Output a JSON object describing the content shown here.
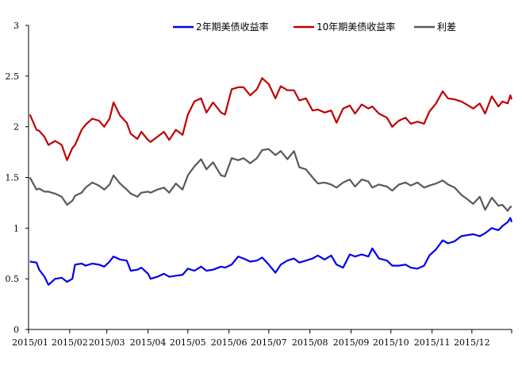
{
  "chart_data": {
    "type": "line",
    "title": "",
    "xlabel": "",
    "ylabel": "",
    "ylim": [
      0,
      3
    ],
    "yticks": [
      "0",
      "0.5",
      "1",
      "1.5",
      "2",
      "2.5",
      "3"
    ],
    "xticks": [
      "2015/01",
      "2015/02",
      "2015/03",
      "2015/04",
      "2015/05",
      "2015/06",
      "2015/07",
      "2015/08",
      "2015/09",
      "2015/10",
      "2015/11",
      "2015/12"
    ],
    "grid": false,
    "legend_position": "top",
    "series": [
      {
        "name": "2年期美债收益率",
        "color": "#0000ee",
        "points": [
          [
            "2015-01-02",
            0.67
          ],
          [
            "2015-01-07",
            0.66
          ],
          [
            "2015-01-09",
            0.59
          ],
          [
            "2015-01-13",
            0.52
          ],
          [
            "2015-01-16",
            0.44
          ],
          [
            "2015-01-21",
            0.5
          ],
          [
            "2015-01-26",
            0.51
          ],
          [
            "2015-01-30",
            0.47
          ],
          [
            "2015-02-03",
            0.5
          ],
          [
            "2015-02-05",
            0.64
          ],
          [
            "2015-02-10",
            0.65
          ],
          [
            "2015-02-13",
            0.63
          ],
          [
            "2015-02-18",
            0.65
          ],
          [
            "2015-02-23",
            0.64
          ],
          [
            "2015-02-27",
            0.62
          ],
          [
            "2015-03-03",
            0.67
          ],
          [
            "2015-03-06",
            0.72
          ],
          [
            "2015-03-11",
            0.69
          ],
          [
            "2015-03-16",
            0.68
          ],
          [
            "2015-03-19",
            0.58
          ],
          [
            "2015-03-24",
            0.59
          ],
          [
            "2015-03-27",
            0.61
          ],
          [
            "2015-04-01",
            0.55
          ],
          [
            "2015-04-03",
            0.5
          ],
          [
            "2015-04-08",
            0.52
          ],
          [
            "2015-04-13",
            0.55
          ],
          [
            "2015-04-17",
            0.52
          ],
          [
            "2015-04-22",
            0.53
          ],
          [
            "2015-04-27",
            0.54
          ],
          [
            "2015-05-01",
            0.6
          ],
          [
            "2015-05-06",
            0.58
          ],
          [
            "2015-05-11",
            0.62
          ],
          [
            "2015-05-15",
            0.58
          ],
          [
            "2015-05-20",
            0.59
          ],
          [
            "2015-05-26",
            0.62
          ],
          [
            "2015-05-29",
            0.61
          ],
          [
            "2015-06-03",
            0.64
          ],
          [
            "2015-06-08",
            0.72
          ],
          [
            "2015-06-12",
            0.7
          ],
          [
            "2015-06-17",
            0.67
          ],
          [
            "2015-06-22",
            0.68
          ],
          [
            "2015-06-26",
            0.71
          ],
          [
            "2015-07-01",
            0.64
          ],
          [
            "2015-07-06",
            0.56
          ],
          [
            "2015-07-10",
            0.64
          ],
          [
            "2015-07-15",
            0.68
          ],
          [
            "2015-07-20",
            0.7
          ],
          [
            "2015-07-24",
            0.66
          ],
          [
            "2015-07-29",
            0.68
          ],
          [
            "2015-08-03",
            0.7
          ],
          [
            "2015-08-07",
            0.73
          ],
          [
            "2015-08-12",
            0.69
          ],
          [
            "2015-08-17",
            0.73
          ],
          [
            "2015-08-21",
            0.64
          ],
          [
            "2015-08-26",
            0.61
          ],
          [
            "2015-08-31",
            0.74
          ],
          [
            "2015-09-04",
            0.72
          ],
          [
            "2015-09-09",
            0.74
          ],
          [
            "2015-09-14",
            0.72
          ],
          [
            "2015-09-17",
            0.8
          ],
          [
            "2015-09-22",
            0.7
          ],
          [
            "2015-09-28",
            0.68
          ],
          [
            "2015-10-02",
            0.63
          ],
          [
            "2015-10-07",
            0.63
          ],
          [
            "2015-10-12",
            0.64
          ],
          [
            "2015-10-16",
            0.61
          ],
          [
            "2015-10-21",
            0.6
          ],
          [
            "2015-10-26",
            0.63
          ],
          [
            "2015-10-30",
            0.73
          ],
          [
            "2015-11-04",
            0.79
          ],
          [
            "2015-11-09",
            0.88
          ],
          [
            "2015-11-13",
            0.85
          ],
          [
            "2015-11-18",
            0.87
          ],
          [
            "2015-11-23",
            0.92
          ],
          [
            "2015-11-27",
            0.93
          ],
          [
            "2015-12-02",
            0.94
          ],
          [
            "2015-12-07",
            0.92
          ],
          [
            "2015-12-11",
            0.95
          ],
          [
            "2015-12-16",
            1.0
          ],
          [
            "2015-12-21",
            0.98
          ],
          [
            "2015-12-24",
            1.02
          ],
          [
            "2015-12-28",
            1.06
          ],
          [
            "2015-12-30",
            1.1
          ],
          [
            "2015-12-31",
            1.06
          ]
        ]
      },
      {
        "name": "10年期美债收益率",
        "color": "#c00000",
        "points": [
          [
            "2015-01-02",
            2.12
          ],
          [
            "2015-01-07",
            1.97
          ],
          [
            "2015-01-09",
            1.96
          ],
          [
            "2015-01-13",
            1.9
          ],
          [
            "2015-01-16",
            1.82
          ],
          [
            "2015-01-21",
            1.86
          ],
          [
            "2015-01-26",
            1.82
          ],
          [
            "2015-01-30",
            1.67
          ],
          [
            "2015-02-03",
            1.79
          ],
          [
            "2015-02-05",
            1.82
          ],
          [
            "2015-02-10",
            1.97
          ],
          [
            "2015-02-13",
            2.02
          ],
          [
            "2015-02-18",
            2.08
          ],
          [
            "2015-02-23",
            2.06
          ],
          [
            "2015-02-27",
            2.0
          ],
          [
            "2015-03-03",
            2.08
          ],
          [
            "2015-03-06",
            2.24
          ],
          [
            "2015-03-11",
            2.11
          ],
          [
            "2015-03-16",
            2.04
          ],
          [
            "2015-03-19",
            1.93
          ],
          [
            "2015-03-24",
            1.88
          ],
          [
            "2015-03-27",
            1.95
          ],
          [
            "2015-04-01",
            1.87
          ],
          [
            "2015-04-03",
            1.85
          ],
          [
            "2015-04-08",
            1.9
          ],
          [
            "2015-04-13",
            1.95
          ],
          [
            "2015-04-17",
            1.87
          ],
          [
            "2015-04-22",
            1.97
          ],
          [
            "2015-04-27",
            1.92
          ],
          [
            "2015-05-01",
            2.12
          ],
          [
            "2015-05-06",
            2.25
          ],
          [
            "2015-05-11",
            2.28
          ],
          [
            "2015-05-15",
            2.14
          ],
          [
            "2015-05-20",
            2.24
          ],
          [
            "2015-05-26",
            2.14
          ],
          [
            "2015-05-29",
            2.12
          ],
          [
            "2015-06-03",
            2.37
          ],
          [
            "2015-06-08",
            2.39
          ],
          [
            "2015-06-12",
            2.39
          ],
          [
            "2015-06-17",
            2.31
          ],
          [
            "2015-06-22",
            2.37
          ],
          [
            "2015-06-26",
            2.48
          ],
          [
            "2015-07-01",
            2.42
          ],
          [
            "2015-07-06",
            2.28
          ],
          [
            "2015-07-10",
            2.4
          ],
          [
            "2015-07-15",
            2.36
          ],
          [
            "2015-07-20",
            2.36
          ],
          [
            "2015-07-24",
            2.26
          ],
          [
            "2015-07-29",
            2.28
          ],
          [
            "2015-08-03",
            2.16
          ],
          [
            "2015-08-07",
            2.17
          ],
          [
            "2015-08-12",
            2.14
          ],
          [
            "2015-08-17",
            2.16
          ],
          [
            "2015-08-21",
            2.04
          ],
          [
            "2015-08-26",
            2.18
          ],
          [
            "2015-08-31",
            2.21
          ],
          [
            "2015-09-04",
            2.13
          ],
          [
            "2015-09-09",
            2.22
          ],
          [
            "2015-09-14",
            2.18
          ],
          [
            "2015-09-17",
            2.2
          ],
          [
            "2015-09-22",
            2.13
          ],
          [
            "2015-09-28",
            2.09
          ],
          [
            "2015-10-02",
            2.0
          ],
          [
            "2015-10-07",
            2.06
          ],
          [
            "2015-10-12",
            2.09
          ],
          [
            "2015-10-16",
            2.03
          ],
          [
            "2015-10-21",
            2.05
          ],
          [
            "2015-10-26",
            2.03
          ],
          [
            "2015-10-30",
            2.15
          ],
          [
            "2015-11-04",
            2.23
          ],
          [
            "2015-11-09",
            2.35
          ],
          [
            "2015-11-13",
            2.28
          ],
          [
            "2015-11-18",
            2.27
          ],
          [
            "2015-11-23",
            2.25
          ],
          [
            "2015-11-27",
            2.22
          ],
          [
            "2015-12-02",
            2.18
          ],
          [
            "2015-12-07",
            2.23
          ],
          [
            "2015-12-11",
            2.13
          ],
          [
            "2015-12-16",
            2.3
          ],
          [
            "2015-12-21",
            2.2
          ],
          [
            "2015-12-24",
            2.25
          ],
          [
            "2015-12-28",
            2.23
          ],
          [
            "2015-12-30",
            2.31
          ],
          [
            "2015-12-31",
            2.27
          ]
        ]
      },
      {
        "name": "利差",
        "color": "#595959",
        "points": [
          [
            "2015-01-02",
            1.5
          ],
          [
            "2015-01-07",
            1.38
          ],
          [
            "2015-01-09",
            1.39
          ],
          [
            "2015-01-13",
            1.36
          ],
          [
            "2015-01-16",
            1.36
          ],
          [
            "2015-01-21",
            1.34
          ],
          [
            "2015-01-26",
            1.31
          ],
          [
            "2015-01-30",
            1.23
          ],
          [
            "2015-02-03",
            1.27
          ],
          [
            "2015-02-05",
            1.32
          ],
          [
            "2015-02-10",
            1.35
          ],
          [
            "2015-02-13",
            1.4
          ],
          [
            "2015-02-18",
            1.45
          ],
          [
            "2015-02-23",
            1.42
          ],
          [
            "2015-02-27",
            1.38
          ],
          [
            "2015-03-03",
            1.43
          ],
          [
            "2015-03-06",
            1.52
          ],
          [
            "2015-03-11",
            1.44
          ],
          [
            "2015-03-16",
            1.38
          ],
          [
            "2015-03-19",
            1.34
          ],
          [
            "2015-03-24",
            1.31
          ],
          [
            "2015-03-27",
            1.35
          ],
          [
            "2015-04-01",
            1.36
          ],
          [
            "2015-04-03",
            1.35
          ],
          [
            "2015-04-08",
            1.38
          ],
          [
            "2015-04-13",
            1.4
          ],
          [
            "2015-04-17",
            1.35
          ],
          [
            "2015-04-22",
            1.44
          ],
          [
            "2015-04-27",
            1.38
          ],
          [
            "2015-05-01",
            1.52
          ],
          [
            "2015-05-06",
            1.61
          ],
          [
            "2015-05-11",
            1.68
          ],
          [
            "2015-05-15",
            1.58
          ],
          [
            "2015-05-20",
            1.65
          ],
          [
            "2015-05-26",
            1.52
          ],
          [
            "2015-05-29",
            1.51
          ],
          [
            "2015-06-03",
            1.69
          ],
          [
            "2015-06-08",
            1.67
          ],
          [
            "2015-06-12",
            1.69
          ],
          [
            "2015-06-17",
            1.64
          ],
          [
            "2015-06-22",
            1.69
          ],
          [
            "2015-06-26",
            1.77
          ],
          [
            "2015-07-01",
            1.78
          ],
          [
            "2015-07-06",
            1.72
          ],
          [
            "2015-07-10",
            1.76
          ],
          [
            "2015-07-15",
            1.68
          ],
          [
            "2015-07-20",
            1.76
          ],
          [
            "2015-07-24",
            1.6
          ],
          [
            "2015-07-29",
            1.58
          ],
          [
            "2015-08-03",
            1.5
          ],
          [
            "2015-08-07",
            1.44
          ],
          [
            "2015-08-12",
            1.45
          ],
          [
            "2015-08-17",
            1.43
          ],
          [
            "2015-08-21",
            1.4
          ],
          [
            "2015-08-26",
            1.45
          ],
          [
            "2015-08-31",
            1.48
          ],
          [
            "2015-09-04",
            1.41
          ],
          [
            "2015-09-09",
            1.48
          ],
          [
            "2015-09-14",
            1.46
          ],
          [
            "2015-09-17",
            1.4
          ],
          [
            "2015-09-22",
            1.43
          ],
          [
            "2015-09-28",
            1.41
          ],
          [
            "2015-10-02",
            1.37
          ],
          [
            "2015-10-07",
            1.43
          ],
          [
            "2015-10-12",
            1.45
          ],
          [
            "2015-10-16",
            1.42
          ],
          [
            "2015-10-21",
            1.45
          ],
          [
            "2015-10-26",
            1.4
          ],
          [
            "2015-10-30",
            1.42
          ],
          [
            "2015-11-04",
            1.44
          ],
          [
            "2015-11-09",
            1.47
          ],
          [
            "2015-11-13",
            1.43
          ],
          [
            "2015-11-18",
            1.4
          ],
          [
            "2015-11-23",
            1.33
          ],
          [
            "2015-11-27",
            1.29
          ],
          [
            "2015-12-02",
            1.24
          ],
          [
            "2015-12-07",
            1.31
          ],
          [
            "2015-12-11",
            1.18
          ],
          [
            "2015-12-16",
            1.3
          ],
          [
            "2015-12-21",
            1.22
          ],
          [
            "2015-12-24",
            1.23
          ],
          [
            "2015-12-28",
            1.17
          ],
          [
            "2015-12-30",
            1.21
          ],
          [
            "2015-12-31",
            1.21
          ]
        ]
      }
    ]
  }
}
